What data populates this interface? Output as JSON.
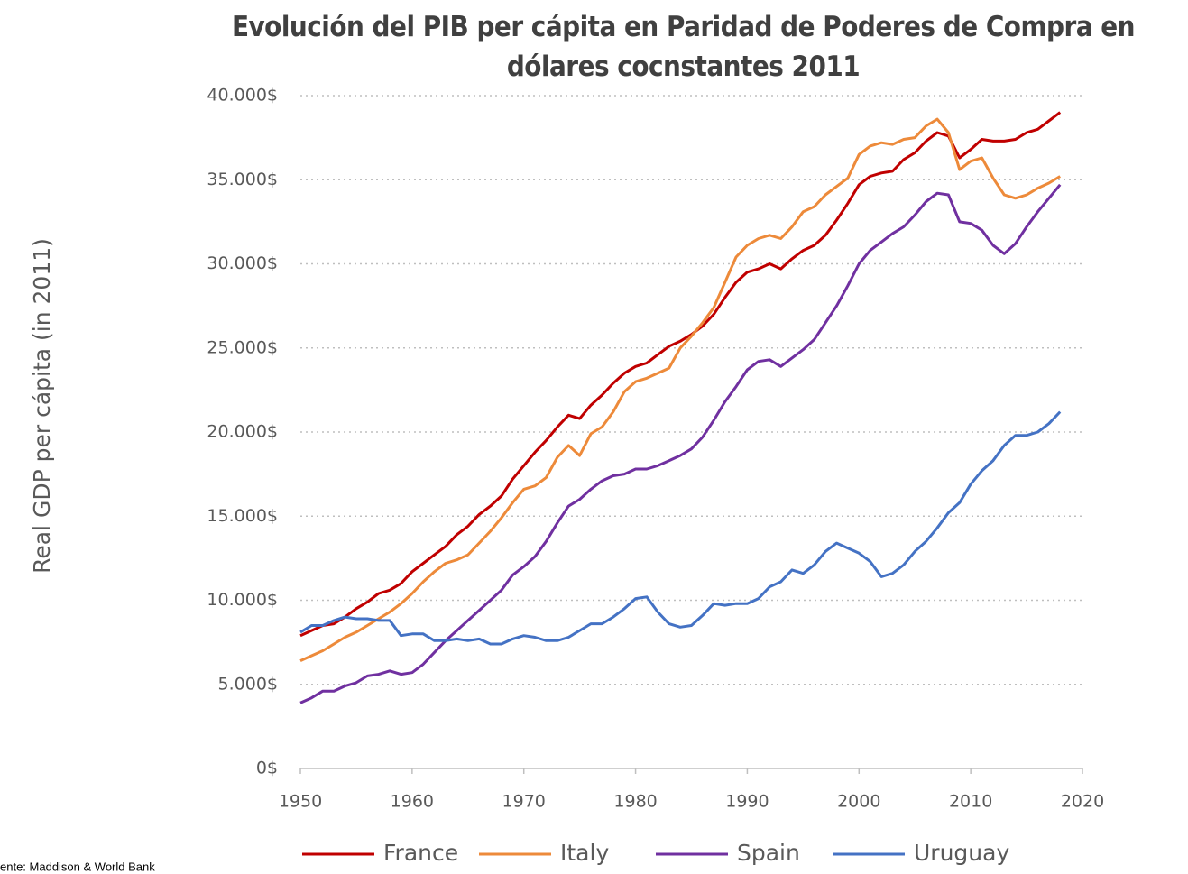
{
  "chart_data": {
    "type": "line",
    "title": "Evolución  del PIB per cápita en Paridad de Poderes de Compra en dólares cocnstantes 2011",
    "y_label": "Real GDP per cápita (in 2011)",
    "footnote": "ente: Maddison & World Bank",
    "x": [
      1950,
      1951,
      1952,
      1953,
      1954,
      1955,
      1956,
      1957,
      1958,
      1959,
      1960,
      1961,
      1962,
      1963,
      1964,
      1965,
      1966,
      1967,
      1968,
      1969,
      1970,
      1971,
      1972,
      1973,
      1974,
      1975,
      1976,
      1977,
      1978,
      1979,
      1980,
      1981,
      1982,
      1983,
      1984,
      1985,
      1986,
      1987,
      1988,
      1989,
      1990,
      1991,
      1992,
      1993,
      1994,
      1995,
      1996,
      1997,
      1998,
      1999,
      2000,
      2001,
      2002,
      2003,
      2004,
      2005,
      2006,
      2007,
      2008,
      2009,
      2010,
      2011,
      2012,
      2013,
      2014,
      2015,
      2016,
      2017,
      2018
    ],
    "series": [
      {
        "name": "France",
        "color": "#c00000",
        "values": [
          7900,
          8200,
          8500,
          8600,
          9000,
          9500,
          9900,
          10400,
          10600,
          11000,
          11700,
          12200,
          12700,
          13200,
          13900,
          14400,
          15100,
          15600,
          16200,
          17200,
          18000,
          18800,
          19500,
          20300,
          21000,
          20800,
          21600,
          22200,
          22900,
          23500,
          23900,
          24100,
          24600,
          25100,
          25400,
          25800,
          26300,
          27000,
          28000,
          28900,
          29500,
          29700,
          30000,
          29700,
          30300,
          30800,
          31100,
          31700,
          32600,
          33600,
          34700,
          35200,
          35400,
          35500,
          36200,
          36600,
          37300,
          37800,
          37600,
          36300,
          36800,
          37400,
          37300,
          37300,
          37400,
          37800,
          38000,
          38500,
          39000
        ]
      },
      {
        "name": "Italy",
        "color": "#ed8a3a",
        "values": [
          6400,
          6700,
          7000,
          7400,
          7800,
          8100,
          8500,
          8900,
          9300,
          9800,
          10400,
          11100,
          11700,
          12200,
          12400,
          12700,
          13400,
          14100,
          14900,
          15800,
          16600,
          16800,
          17300,
          18500,
          19200,
          18600,
          19900,
          20300,
          21200,
          22400,
          23000,
          23200,
          23500,
          23800,
          25000,
          25700,
          26500,
          27400,
          28900,
          30400,
          31100,
          31500,
          31700,
          31500,
          32200,
          33100,
          33400,
          34100,
          34600,
          35100,
          36500,
          37000,
          37200,
          37100,
          37400,
          37500,
          38200,
          38600,
          37800,
          35600,
          36100,
          36300,
          35100,
          34100,
          33900,
          34100,
          34500,
          34800,
          35200
        ]
      },
      {
        "name": "Spain",
        "color": "#7030a0",
        "values": [
          3900,
          4200,
          4600,
          4600,
          4900,
          5100,
          5500,
          5600,
          5800,
          5600,
          5700,
          6200,
          6900,
          7600,
          8200,
          8800,
          9400,
          10000,
          10600,
          11500,
          12000,
          12600,
          13500,
          14600,
          15600,
          16000,
          16600,
          17100,
          17400,
          17500,
          17800,
          17800,
          18000,
          18300,
          18600,
          19000,
          19700,
          20700,
          21800,
          22700,
          23700,
          24200,
          24300,
          23900,
          24400,
          24900,
          25500,
          26500,
          27500,
          28700,
          30000,
          30800,
          31300,
          31800,
          32200,
          32900,
          33700,
          34200,
          34100,
          32500,
          32400,
          32000,
          31100,
          30600,
          31200,
          32200,
          33100,
          33900,
          34700
        ]
      },
      {
        "name": "Uruguay",
        "color": "#4472c4",
        "values": [
          8100,
          8500,
          8500,
          8800,
          9000,
          8900,
          8900,
          8800,
          8800,
          7900,
          8000,
          8000,
          7600,
          7600,
          7700,
          7600,
          7700,
          7400,
          7400,
          7700,
          7900,
          7800,
          7600,
          7600,
          7800,
          8200,
          8600,
          8600,
          9000,
          9500,
          10100,
          10200,
          9300,
          8600,
          8400,
          8500,
          9100,
          9800,
          9700,
          9800,
          9800,
          10100,
          10800,
          11100,
          11800,
          11600,
          12100,
          12900,
          13400,
          13100,
          12800,
          12300,
          11400,
          11600,
          12100,
          12900,
          13500,
          14300,
          15200,
          15800,
          16900,
          17700,
          18300,
          19200,
          19800,
          19800,
          20000,
          20500,
          21200
        ]
      }
    ],
    "xlim": [
      1950,
      2020
    ],
    "xticks": [
      1950,
      1960,
      1970,
      1980,
      1990,
      2000,
      2010,
      2020
    ],
    "ylim": [
      0,
      40000
    ],
    "yticks": [
      {
        "value": 0,
        "label": "0$"
      },
      {
        "value": 5000,
        "label": "5.000$"
      },
      {
        "value": 10000,
        "label": "10.000$"
      },
      {
        "value": 15000,
        "label": "15.000$"
      },
      {
        "value": 20000,
        "label": "20.000$"
      },
      {
        "value": 25000,
        "label": "25.000$"
      },
      {
        "value": 30000,
        "label": "30.000$"
      },
      {
        "value": 35000,
        "label": "35.000$"
      },
      {
        "value": 40000,
        "label": "40.000$"
      }
    ],
    "grid": true,
    "legend": "bottom"
  }
}
